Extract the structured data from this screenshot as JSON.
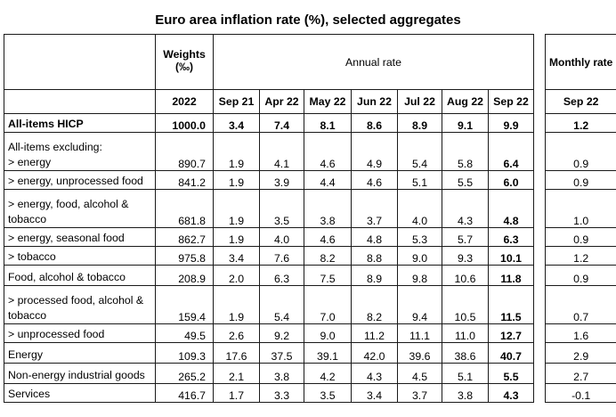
{
  "title": "Euro area inflation rate (%), selected aggregates",
  "header": {
    "weights_label": "Weights",
    "weights_unit": "(‰)",
    "annual_rate_label": "Annual rate",
    "monthly_rate_label": "Monthly rate",
    "weights_year": "2022",
    "months": [
      "Sep 21",
      "Apr 22",
      "May 22",
      "Jun 22",
      "Jul 22",
      "Aug 22",
      "Sep 22"
    ],
    "monthly_month": "Sep 22"
  },
  "rows": [
    {
      "label": "All-items HICP",
      "weight": "1000.0",
      "values": [
        "3.4",
        "7.4",
        "8.1",
        "8.6",
        "8.9",
        "9.1",
        "9.9"
      ],
      "monthly": "1.2"
    },
    {
      "label": "> energy",
      "weight": "890.7",
      "values": [
        "1.9",
        "4.1",
        "4.6",
        "4.9",
        "5.4",
        "5.8",
        "6.4"
      ],
      "monthly": "0.9"
    },
    {
      "label": "> energy, unprocessed food",
      "weight": "841.2",
      "values": [
        "1.9",
        "3.9",
        "4.4",
        "4.6",
        "5.1",
        "5.5",
        "6.0"
      ],
      "monthly": "0.9"
    },
    {
      "label": "> energy, food, alcohol & tobacco",
      "weight": "681.8",
      "values": [
        "1.9",
        "3.5",
        "3.8",
        "3.7",
        "4.0",
        "4.3",
        "4.8"
      ],
      "monthly": "1.0"
    },
    {
      "label": "> energy, seasonal food",
      "weight": "862.7",
      "values": [
        "1.9",
        "4.0",
        "4.6",
        "4.8",
        "5.3",
        "5.7",
        "6.3"
      ],
      "monthly": "0.9"
    },
    {
      "label": "> tobacco",
      "weight": "975.8",
      "values": [
        "3.4",
        "7.6",
        "8.2",
        "8.8",
        "9.0",
        "9.3",
        "10.1"
      ],
      "monthly": "1.2"
    },
    {
      "label": "Food, alcohol & tobacco",
      "weight": "208.9",
      "values": [
        "2.0",
        "6.3",
        "7.5",
        "8.9",
        "9.8",
        "10.6",
        "11.8"
      ],
      "monthly": "0.9"
    },
    {
      "label": "> processed food, alcohol & tobacco",
      "weight": "159.4",
      "values": [
        "1.9",
        "5.4",
        "7.0",
        "8.2",
        "9.4",
        "10.5",
        "11.5"
      ],
      "monthly": "0.7"
    },
    {
      "label": "> unprocessed food",
      "weight": "49.5",
      "values": [
        "2.6",
        "9.2",
        "9.0",
        "11.2",
        "11.1",
        "11.0",
        "12.7"
      ],
      "monthly": "1.6"
    },
    {
      "label": "Energy",
      "weight": "109.3",
      "values": [
        "17.6",
        "37.5",
        "39.1",
        "42.0",
        "39.6",
        "38.6",
        "40.7"
      ],
      "monthly": "2.9"
    },
    {
      "label": "Non-energy industrial goods",
      "weight": "265.2",
      "values": [
        "2.1",
        "3.8",
        "4.2",
        "4.3",
        "4.5",
        "5.1",
        "5.5"
      ],
      "monthly": "2.7"
    },
    {
      "label": "Services",
      "weight": "416.7",
      "values": [
        "1.7",
        "3.3",
        "3.5",
        "3.4",
        "3.7",
        "3.8",
        "4.3"
      ],
      "monthly": "-0.1"
    }
  ],
  "excluding_label": "All-items excluding:"
}
